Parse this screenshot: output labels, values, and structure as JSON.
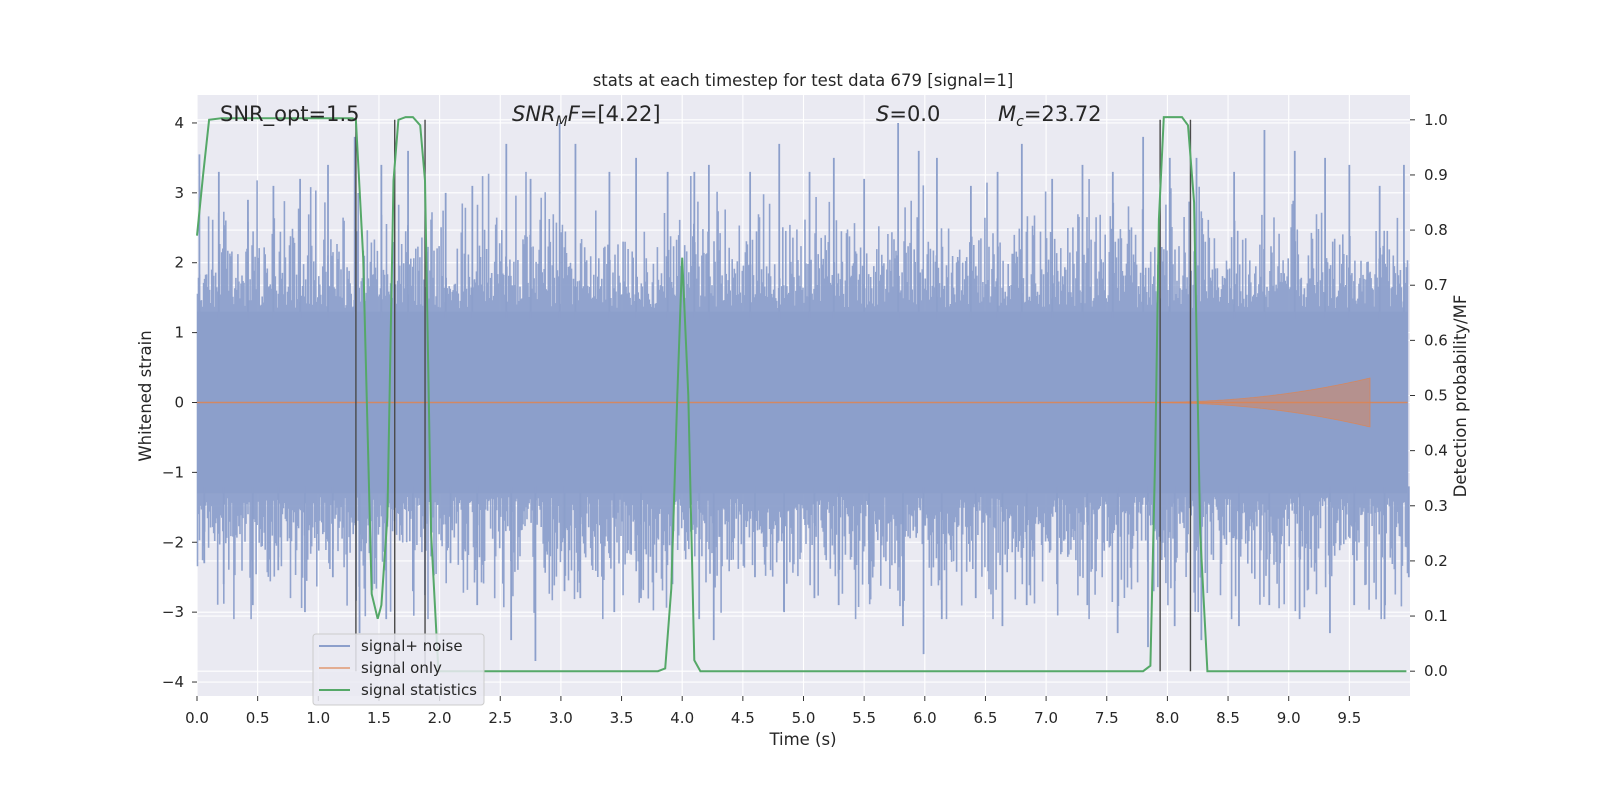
{
  "chart_data": {
    "type": "line",
    "title": "stats at each timestep for test data 679 [signal=1]",
    "xlabel": "Time (s)",
    "ylabel": "Whitened strain",
    "y2label": "Detection probability/MF",
    "xlim": [
      0.0,
      10.0
    ],
    "ylim": [
      -4.2,
      4.4
    ],
    "y2lim": [
      -0.045,
      1.045
    ],
    "xticks": [
      "0.0",
      "0.5",
      "1.0",
      "1.5",
      "2.0",
      "2.5",
      "3.0",
      "3.5",
      "4.0",
      "4.5",
      "5.0",
      "5.5",
      "6.0",
      "6.5",
      "7.0",
      "7.5",
      "8.0",
      "8.5",
      "9.0",
      "9.5"
    ],
    "yticks": [
      "−4",
      "−3",
      "−2",
      "−1",
      "0",
      "1",
      "2",
      "3",
      "4"
    ],
    "y2ticks": [
      "0.0",
      "0.1",
      "0.2",
      "0.3",
      "0.4",
      "0.5",
      "0.6",
      "0.7",
      "0.8",
      "0.9",
      "1.0"
    ],
    "grid": true,
    "legend_position": "lower-left",
    "annotations": {
      "snr_opt": "SNR_opt=1.5",
      "snr_mf_prefix": "SNR",
      "snr_mf_sub": "M",
      "snr_mf_suffix": "F",
      "snr_mf_value": "=[4.22]",
      "s_symbol": "S",
      "s_value": "=0.0",
      "mc_symbol": "M",
      "mc_sub": "c",
      "mc_value": "=23.72"
    },
    "colors": {
      "noise": "#8c9fcb",
      "signal": "#dd8452",
      "stats": "#55a868",
      "vlines": "#4a4a4a",
      "background": "#eaeaf2",
      "grid": "#ffffff"
    },
    "noise_peaks": {
      "x": [
        0.02,
        0.18,
        0.42,
        0.63,
        0.85,
        1.08,
        1.3,
        1.52,
        1.74,
        2.05,
        2.27,
        2.55,
        2.75,
        2.99,
        3.12,
        3.4,
        3.62,
        3.88,
        4.1,
        4.22,
        4.56,
        4.8,
        5.05,
        5.25,
        5.5,
        5.78,
        5.95,
        6.1,
        6.38,
        6.6,
        6.8,
        7.05,
        7.3,
        7.55,
        7.8,
        8.02,
        8.24,
        8.55,
        8.8,
        9.05,
        9.3,
        9.5,
        9.75,
        9.95
      ],
      "max": [
        3.55,
        3.3,
        2.9,
        3.1,
        3.2,
        3.4,
        3.8,
        3.4,
        3.6,
        3.0,
        3.1,
        3.7,
        3.2,
        4.0,
        3.7,
        3.3,
        3.5,
        3.3,
        3.3,
        3.4,
        3.3,
        3.7,
        3.3,
        3.5,
        3.2,
        4.0,
        3.6,
        3.5,
        3.1,
        3.3,
        3.7,
        3.2,
        3.4,
        3.3,
        3.8,
        3.5,
        3.5,
        3.3,
        3.9,
        3.6,
        3.5,
        3.4,
        3.1,
        3.4
      ],
      "min": [
        -2.3,
        -2.6,
        -2.9,
        -2.4,
        -3.0,
        -2.5,
        -3.3,
        -3.1,
        -2.7,
        -2.3,
        -2.9,
        -3.4,
        -3.7,
        -2.7,
        -2.8,
        -3.0,
        -2.8,
        -2.6,
        -3.1,
        -3.4,
        -2.5,
        -3.0,
        -2.8,
        -2.9,
        -2.6,
        -3.2,
        -3.6,
        -3.1,
        -2.8,
        -3.2,
        -2.9,
        -2.6,
        -2.9,
        -3.3,
        -3.5,
        -3.2,
        -3.4,
        -3.2,
        -2.9,
        -3.1,
        -3.3,
        -2.9,
        -3.1,
        -2.5
      ]
    },
    "signal_chirp": {
      "start": 7.8,
      "end": 9.67,
      "peak_amplitude": 0.35
    },
    "series": [
      {
        "name": "signal+ noise",
        "axis": "left"
      },
      {
        "name": "signal only",
        "axis": "left"
      },
      {
        "name": "signal statistics",
        "axis": "right",
        "x": [
          0.0,
          0.05,
          0.1,
          0.2,
          0.5,
          1.0,
          1.28,
          1.31,
          1.37,
          1.44,
          1.49,
          1.52,
          1.57,
          1.62,
          1.66,
          1.72,
          1.78,
          1.84,
          1.88,
          1.93,
          1.99,
          2.05,
          2.5,
          3.0,
          3.5,
          3.8,
          3.86,
          3.91,
          3.96,
          4.0,
          4.05,
          4.1,
          4.15,
          4.2,
          5.0,
          6.0,
          7.0,
          7.8,
          7.86,
          7.9,
          7.93,
          7.97,
          8.02,
          8.07,
          8.12,
          8.17,
          8.22,
          8.27,
          8.33,
          8.38,
          8.5,
          9.0,
          9.5,
          9.97
        ],
        "values": [
          0.79,
          0.9,
          1.0,
          1.003,
          1.003,
          1.003,
          1.003,
          1.0,
          0.75,
          0.14,
          0.095,
          0.12,
          0.28,
          0.89,
          1.0,
          1.005,
          1.005,
          0.99,
          0.89,
          0.25,
          0.0,
          0.0,
          0.0,
          0.0,
          0.0,
          0.0,
          0.005,
          0.15,
          0.5,
          0.75,
          0.5,
          0.02,
          0.0,
          0.0,
          0.0,
          0.0,
          0.0,
          0.0,
          0.01,
          0.4,
          0.82,
          1.005,
          1.005,
          1.005,
          1.005,
          0.99,
          0.85,
          0.25,
          0.0,
          0.0,
          0.0,
          0.0,
          0.0,
          0.0
        ]
      }
    ],
    "vertical_lines": [
      1.31,
      1.63,
      1.88,
      7.94,
      8.19
    ]
  }
}
